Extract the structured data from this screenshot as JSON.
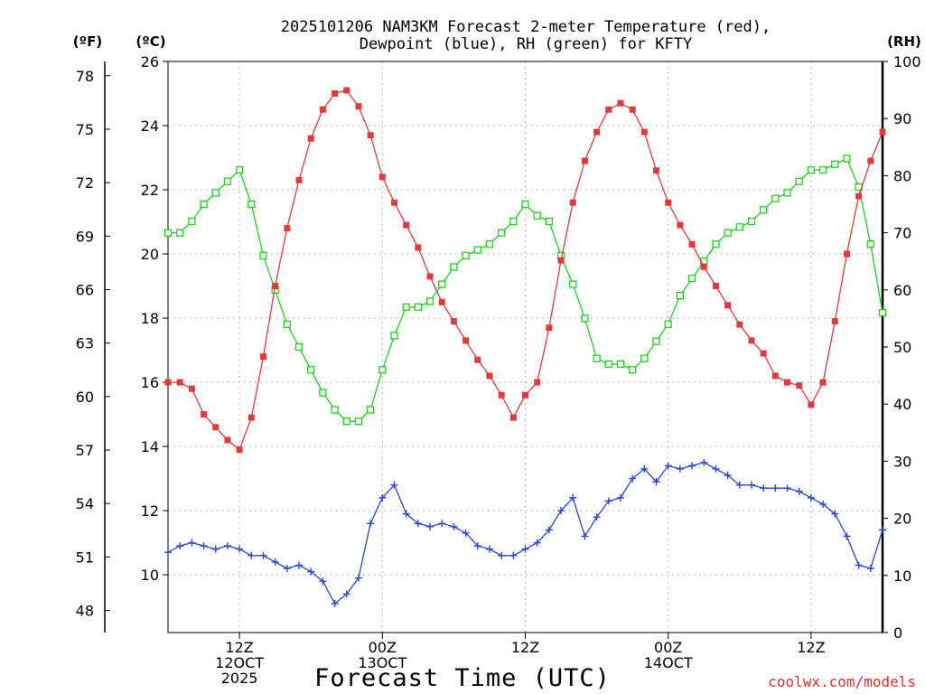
{
  "title_line1": "2025101206 NAM3KM Forecast 2-meter Temperature (red),",
  "title_line2": "Dewpoint (blue), RH (green) for KFTY",
  "unit_f": "(ºF)",
  "unit_c": "(ºC)",
  "unit_rh": "(RH)",
  "xlabel": "Forecast Time (UTC)",
  "credit": "coolwx.com/models",
  "colors": {
    "temperature": "#e03a3a",
    "dewpoint": "#2a46d8",
    "rh": "#1ed21e",
    "axis": "#000000"
  },
  "chart_data": {
    "type": "line",
    "title": "2025101206 NAM3KM Forecast 2-meter Temperature (red), Dewpoint (blue), RH (green) for KFTY",
    "xlabel": "Forecast Time (UTC)",
    "x_hours": [
      6,
      7,
      8,
      9,
      10,
      11,
      12,
      13,
      14,
      15,
      16,
      17,
      18,
      19,
      20,
      21,
      22,
      23,
      24,
      25,
      26,
      27,
      28,
      29,
      30,
      31,
      32,
      33,
      34,
      35,
      36,
      37,
      38,
      39,
      40,
      41,
      42,
      43,
      44,
      45,
      46,
      47,
      48,
      49,
      50,
      51,
      52,
      53,
      54,
      55,
      56,
      57,
      58,
      59,
      60,
      61,
      62,
      63,
      64,
      65,
      66
    ],
    "x_ticks": [
      {
        "hour": 12,
        "lines": [
          "12Z",
          "12OCT",
          "2025"
        ]
      },
      {
        "hour": 24,
        "lines": [
          "00Z",
          "13OCT"
        ]
      },
      {
        "hour": 36,
        "lines": [
          "12Z"
        ]
      },
      {
        "hour": 48,
        "lines": [
          "00Z",
          "14OCT"
        ]
      },
      {
        "hour": 60,
        "lines": [
          "12Z"
        ]
      }
    ],
    "y_celsius": {
      "label": "(ºC)",
      "range": [
        8.2,
        26
      ],
      "ticks": [
        10,
        12,
        14,
        16,
        18,
        20,
        22,
        24,
        26
      ]
    },
    "y_fahrenheit": {
      "label": "(ºF)",
      "ticks": [
        48,
        51,
        54,
        57,
        60,
        63,
        66,
        69,
        72,
        75,
        78
      ]
    },
    "y_rh": {
      "label": "(RH)",
      "range": [
        0,
        100
      ],
      "ticks": [
        0,
        10,
        20,
        30,
        40,
        50,
        60,
        70,
        80,
        90,
        100
      ]
    },
    "series": [
      {
        "name": "2-meter Temperature",
        "units": "C",
        "color": "red",
        "marker": "filled-square",
        "values": [
          16.0,
          16.0,
          15.8,
          15.0,
          14.6,
          14.2,
          13.9,
          14.9,
          16.8,
          19.0,
          20.8,
          22.3,
          23.6,
          24.5,
          25.0,
          25.1,
          24.6,
          23.7,
          22.4,
          21.6,
          20.9,
          20.2,
          19.3,
          18.5,
          17.9,
          17.3,
          16.7,
          16.2,
          15.6,
          14.9,
          15.6,
          16.0,
          17.7,
          19.8,
          21.6,
          22.9,
          23.8,
          24.5,
          24.7,
          24.5,
          23.8,
          22.6,
          21.6,
          20.9,
          20.3,
          19.6,
          19.0,
          18.4,
          17.8,
          17.3,
          16.9,
          16.2,
          16.0,
          15.9,
          15.3,
          16.0,
          17.9,
          20.0,
          21.8,
          22.9,
          23.8
        ]
      },
      {
        "name": "Dewpoint",
        "units": "C",
        "color": "blue",
        "marker": "plus",
        "values": [
          10.7,
          10.9,
          11.0,
          10.9,
          10.8,
          10.9,
          10.8,
          10.6,
          10.6,
          10.4,
          10.2,
          10.3,
          10.1,
          9.8,
          9.1,
          9.4,
          9.9,
          11.6,
          12.4,
          12.8,
          11.9,
          11.6,
          11.5,
          11.6,
          11.5,
          11.3,
          10.9,
          10.8,
          10.6,
          10.6,
          10.8,
          11.0,
          11.4,
          12.0,
          12.4,
          11.2,
          11.8,
          12.3,
          12.4,
          13.0,
          13.3,
          12.9,
          13.4,
          13.3,
          13.4,
          13.5,
          13.3,
          13.1,
          12.8,
          12.8,
          12.7,
          12.7,
          12.7,
          12.6,
          12.4,
          12.2,
          11.9,
          11.2,
          10.3,
          10.2,
          11.4
        ]
      },
      {
        "name": "RH",
        "units": "%",
        "color": "green",
        "marker": "open-square",
        "values": [
          70,
          70,
          72,
          75,
          77,
          79,
          81,
          75,
          66,
          60,
          54,
          50,
          46,
          42,
          39,
          37,
          37,
          39,
          46,
          52,
          57,
          57,
          58,
          61,
          64,
          66,
          67,
          68,
          70,
          72,
          75,
          73,
          72,
          66,
          61,
          55,
          48,
          47,
          47,
          46,
          48,
          51,
          54,
          59,
          62,
          65,
          68,
          70,
          71,
          72,
          74,
          76,
          77,
          79,
          81,
          81,
          82,
          83,
          78,
          68,
          56
        ]
      }
    ]
  }
}
